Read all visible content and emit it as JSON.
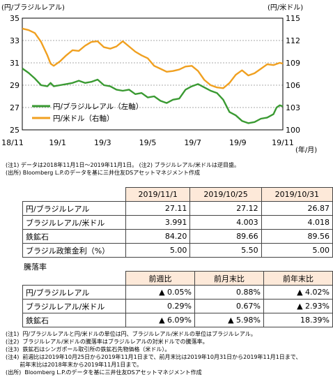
{
  "chart_data": {
    "type": "line",
    "left_axis_label": "(円/ブラジルレアル)",
    "right_axis_label": "(円/米ドル)",
    "x_unit_label": "(年/月)",
    "x_ticks": [
      "18/11",
      "19/1",
      "19/3",
      "19/5",
      "19/7",
      "19/9",
      "19/11"
    ],
    "left_ticks": [
      "35",
      "33",
      "31",
      "29",
      "27",
      "25"
    ],
    "right_ticks": [
      "115",
      "112",
      "109",
      "106",
      "103",
      "100"
    ],
    "left_ylim": [
      25,
      35
    ],
    "right_ylim": [
      100,
      115
    ],
    "grid": true,
    "legend_position": "bottom-left",
    "series": [
      {
        "name": "円/ブラジルレアル（左軸）",
        "axis": "left",
        "color": "#3a9a32",
        "points": [
          [
            0,
            30.5
          ],
          [
            2,
            30.1
          ],
          [
            4,
            29.6
          ],
          [
            6,
            29.0
          ],
          [
            8,
            28.9
          ],
          [
            9,
            29.2
          ],
          [
            10,
            28.9
          ],
          [
            12,
            29.0
          ],
          [
            14,
            29.1
          ],
          [
            16,
            29.2
          ],
          [
            18,
            29.4
          ],
          [
            20,
            29.2
          ],
          [
            22,
            29.3
          ],
          [
            24,
            29.5
          ],
          [
            26,
            29.0
          ],
          [
            28,
            28.9
          ],
          [
            30,
            28.6
          ],
          [
            32,
            28.5
          ],
          [
            34,
            28.6
          ],
          [
            36,
            28.2
          ],
          [
            38,
            28.3
          ],
          [
            40,
            27.9
          ],
          [
            42,
            28.0
          ],
          [
            44,
            27.6
          ],
          [
            46,
            27.4
          ],
          [
            48,
            27.7
          ],
          [
            50,
            27.8
          ],
          [
            52,
            28.6
          ],
          [
            54,
            28.9
          ],
          [
            56,
            29.1
          ],
          [
            58,
            28.8
          ],
          [
            60,
            28.5
          ],
          [
            62,
            28.3
          ],
          [
            64,
            27.7
          ],
          [
            66,
            26.6
          ],
          [
            68,
            26.3
          ],
          [
            70,
            25.8
          ],
          [
            72,
            25.6
          ],
          [
            74,
            25.7
          ],
          [
            76,
            26.0
          ],
          [
            78,
            26.1
          ],
          [
            80,
            26.4
          ],
          [
            81,
            27.0
          ],
          [
            82,
            27.2
          ],
          [
            83,
            27.1
          ]
        ]
      },
      {
        "name": "円/米ドル（右軸）",
        "axis": "right",
        "color": "#f0a020",
        "points": [
          [
            0,
            113.6
          ],
          [
            2,
            113.4
          ],
          [
            4,
            113.0
          ],
          [
            6,
            111.8
          ],
          [
            8,
            110.0
          ],
          [
            9,
            108.9
          ],
          [
            10,
            108.6
          ],
          [
            12,
            109.2
          ],
          [
            14,
            110.0
          ],
          [
            16,
            110.7
          ],
          [
            18,
            110.6
          ],
          [
            20,
            111.3
          ],
          [
            22,
            111.8
          ],
          [
            24,
            111.9
          ],
          [
            26,
            111.1
          ],
          [
            28,
            110.9
          ],
          [
            30,
            111.2
          ],
          [
            32,
            111.9
          ],
          [
            34,
            111.2
          ],
          [
            36,
            110.5
          ],
          [
            38,
            110.0
          ],
          [
            40,
            109.6
          ],
          [
            42,
            108.6
          ],
          [
            44,
            108.2
          ],
          [
            46,
            107.8
          ],
          [
            48,
            107.9
          ],
          [
            50,
            108.1
          ],
          [
            52,
            108.5
          ],
          [
            54,
            108.6
          ],
          [
            56,
            107.9
          ],
          [
            58,
            106.7
          ],
          [
            60,
            106.0
          ],
          [
            62,
            105.7
          ],
          [
            64,
            105.6
          ],
          [
            66,
            106.3
          ],
          [
            68,
            107.4
          ],
          [
            70,
            108.0
          ],
          [
            72,
            107.3
          ],
          [
            74,
            107.6
          ],
          [
            76,
            108.2
          ],
          [
            78,
            108.8
          ],
          [
            80,
            108.7
          ],
          [
            82,
            109.0
          ],
          [
            83,
            108.9
          ]
        ]
      }
    ]
  },
  "chart_notes": [
    "(注1) データは2018年11月1日～2019年11月1日。 (注2) ブラジルレアル/米ドルは逆目盛。",
    "(出所) Bloomberg L.P.のデータを基に三井住友DSアセットマネジメント作成"
  ],
  "table1": {
    "headers": [
      "2019/11/1",
      "2019/10/25",
      "2019/10/31"
    ],
    "rows": [
      {
        "label": "円/ブラジルレアル",
        "values": [
          "27.11",
          "27.12",
          "26.87"
        ]
      },
      {
        "label": "ブラジルレアル/米ドル",
        "values": [
          "3.991",
          "4.003",
          "4.018"
        ]
      },
      {
        "label": "鉄鉱石",
        "values": [
          "84.20",
          "89.66",
          "89.56"
        ]
      },
      {
        "label": "ブラジル政策金利（%）",
        "values": [
          "5.00",
          "5.50",
          "5.00"
        ]
      }
    ]
  },
  "table2": {
    "title": "騰落率",
    "headers": [
      "前週比",
      "前月末比",
      "前年末比"
    ],
    "rows": [
      {
        "label": "円/ブラジルレアル",
        "values": [
          "▲ 0.05%",
          "0.88%",
          "▲ 4.02%"
        ]
      },
      {
        "label": "ブラジルレアル/米ドル",
        "values": [
          "0.29%",
          "0.67%",
          "▲ 2.93%"
        ]
      },
      {
        "label": "鉄鉱石",
        "values": [
          "▲ 6.09%",
          "▲ 5.98%",
          "18.39%"
        ]
      }
    ]
  },
  "footnotes": [
    "(注1)  円/ブラジルレアルと円/米ドルの単位は円、ブラジルレアル/米ドルの単位はブラジルレアル。",
    "(注2)  ブラジルレアル/米ドルの騰落率はブラジルレアルの対米ドルでの騰落率。",
    "(注3)  鉄鉱石はシンガポール取引所の鉄鉱石先物価格（米ドル）。",
    "(注4)  前週比は2019年10月25日から2019年11月1日まで、前月末比は2019年10月31日から2019年11月1日まで、",
    "        前年末比は2018年末から2019年11月1日まで。",
    "(出所)  Bloomberg L.P.のデータを基に三井住友DSアセットマネジメント作成"
  ]
}
